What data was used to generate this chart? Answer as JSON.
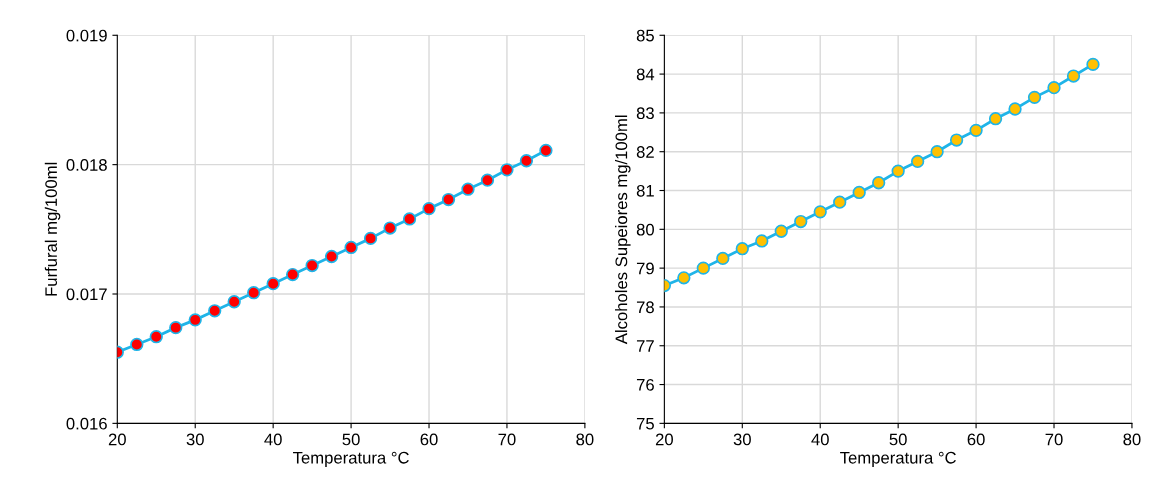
{
  "chart_data": [
    {
      "type": "line",
      "xlabel": "Temperatura °C",
      "ylabel": "Furfural mg/100ml",
      "x": [
        20,
        22.5,
        25,
        27.5,
        30,
        32.5,
        35,
        37.5,
        40,
        42.5,
        45,
        47.5,
        50,
        52.5,
        55,
        57.5,
        60,
        62.5,
        65,
        67.5,
        70,
        72.5,
        75
      ],
      "series": [
        {
          "color": "#1fb4e8",
          "colors": [
            "#ff0000",
            "#ff0000",
            "#ff0000",
            "#ff0000",
            "#ff0000",
            "#ff0000",
            "#ff0000",
            "#ff0000",
            "#ff0000",
            "#ff0000",
            "#ff0000",
            "#ff0000",
            "#ff0000",
            "#ff0000",
            "#ff0000",
            "#ff0000",
            "#ff0000",
            "#ff0000",
            "#ff0000",
            "#ff0000",
            "#ff0000",
            "#ff0000",
            "#ff0000"
          ],
          "values": [
            0.01655,
            0.01661,
            0.01667,
            0.01674,
            0.0168,
            0.01687,
            0.01694,
            0.01701,
            0.01708,
            0.01715,
            0.01722,
            0.01729,
            0.01736,
            0.01743,
            0.01751,
            0.01758,
            0.01766,
            0.01773,
            0.01781,
            0.01788,
            0.01796,
            0.01803,
            0.01811
          ]
        }
      ],
      "xlim": [
        20,
        80
      ],
      "xticks": [
        20,
        30,
        40,
        50,
        60,
        70,
        80
      ],
      "ylim": [
        0.016,
        0.019
      ],
      "yticks": [
        0.016,
        0.017,
        0.018,
        0.019
      ],
      "grid": true,
      "marker": "circle",
      "line_style": "solid"
    },
    {
      "type": "line",
      "xlabel": "Temperatura °C",
      "ylabel": "Alcoholes Supeiores mg/100ml",
      "x": [
        20,
        22.5,
        25,
        27.5,
        30,
        32.5,
        35,
        37.5,
        40,
        42.5,
        45,
        47.5,
        50,
        52.5,
        55,
        57.5,
        60,
        62.5,
        65,
        67.5,
        70,
        72.5,
        75
      ],
      "series": [
        {
          "color": "#1fb4e8",
          "colors": [
            "#ffc000",
            "#ffc000",
            "#ffc000",
            "#ffc000",
            "#ffc000",
            "#ffc000",
            "#ffc000",
            "#ffc000",
            "#ffc000",
            "#ffc000",
            "#ffc000",
            "#ffc000",
            "#ffc000",
            "#ffc000",
            "#ffc000",
            "#ffc000",
            "#ffc000",
            "#ffc000",
            "#ffc000",
            "#ffc000",
            "#ffc000",
            "#ffc000",
            "#ffc000"
          ],
          "values": [
            78.55,
            78.75,
            79.0,
            79.25,
            79.5,
            79.7,
            79.95,
            80.2,
            80.45,
            80.7,
            80.95,
            81.2,
            81.5,
            81.75,
            82.0,
            82.3,
            82.55,
            82.85,
            83.1,
            83.4,
            83.65,
            83.95,
            84.25
          ]
        }
      ],
      "xlim": [
        20,
        80
      ],
      "xticks": [
        20,
        30,
        40,
        50,
        60,
        70,
        80
      ],
      "ylim": [
        75,
        85
      ],
      "yticks": [
        75,
        76,
        77,
        78,
        79,
        80,
        81,
        82,
        83,
        84,
        85
      ],
      "grid": true,
      "marker": "circle",
      "line_style": "solid"
    }
  ]
}
